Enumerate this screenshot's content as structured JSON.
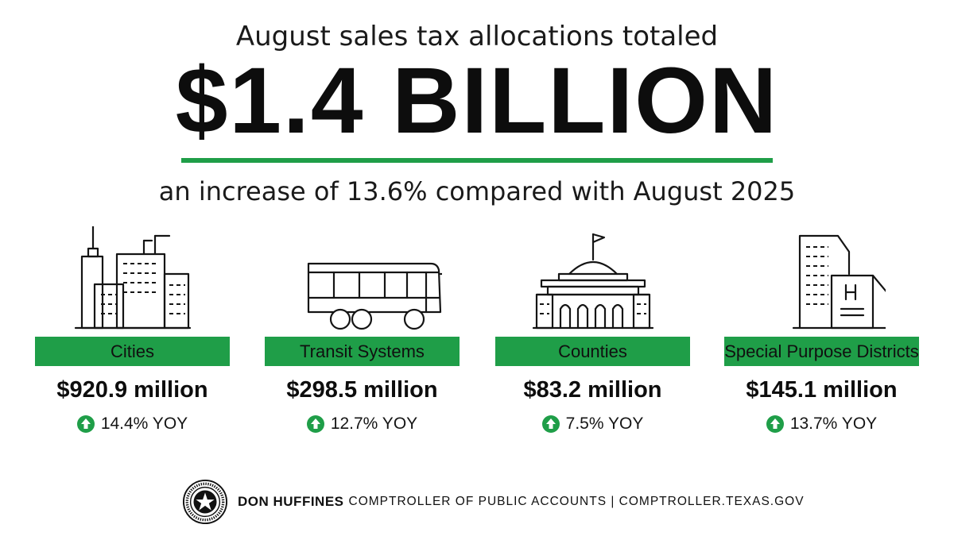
{
  "header": {
    "line1": "August sales tax allocations totaled",
    "amount": "$1.4 BILLION",
    "line2": "an increase of 13.6% compared with August 2025"
  },
  "colors": {
    "accent_green": "#1f9e48",
    "text": "#111111"
  },
  "categories": [
    {
      "icon": "city-buildings-icon",
      "label": "Cities",
      "amount": "$920.9 million",
      "yoy": "14.4% YOY"
    },
    {
      "icon": "bus-icon",
      "label": "Transit Systems",
      "amount": "$298.5 million",
      "yoy": "12.7% YOY"
    },
    {
      "icon": "courthouse-icon",
      "label": "Counties",
      "amount": "$83.2 million",
      "yoy": "7.5% YOY"
    },
    {
      "icon": "hospital-building-icon",
      "label": "Special Purpose Districts",
      "amount": "$145.1 million",
      "yoy": "13.7% YOY"
    }
  ],
  "footer": {
    "seal_icon": "texas-comptroller-seal-icon",
    "name": "DON HUFFINES",
    "org": "COMPTROLLER OF PUBLIC ACCOUNTS | COMPTROLLER.TEXAS.GOV"
  }
}
